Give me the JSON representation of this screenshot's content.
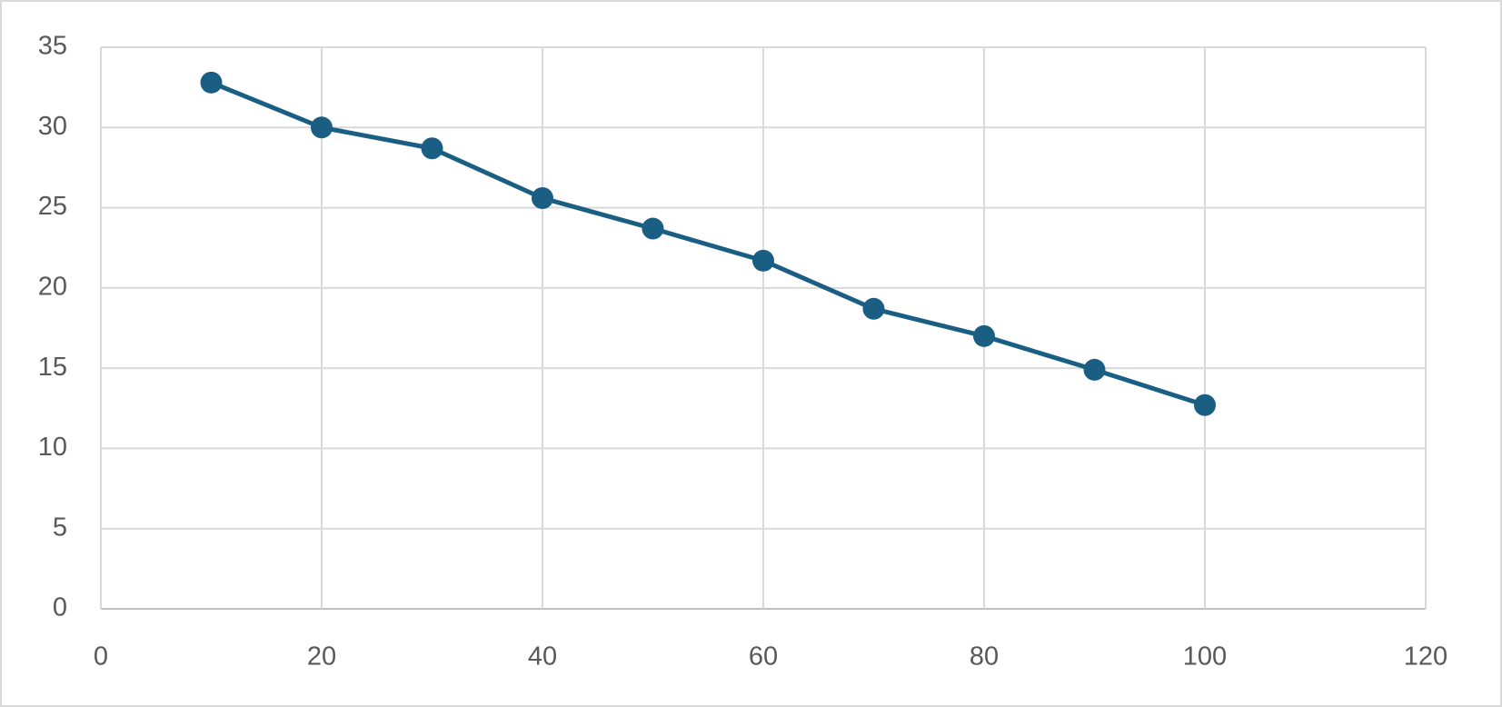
{
  "chart_data": {
    "type": "line",
    "x": [
      10,
      20,
      30,
      40,
      50,
      60,
      70,
      80,
      90,
      100
    ],
    "values": [
      32.8,
      30,
      28.7,
      25.6,
      23.7,
      21.7,
      18.7,
      17,
      14.9,
      12.7
    ],
    "color": "#1a5e83",
    "xlim": [
      0,
      120
    ],
    "xticks": [
      0,
      20,
      40,
      60,
      80,
      100,
      120
    ],
    "ylim": [
      0,
      35
    ],
    "yticks": [
      0,
      5,
      10,
      15,
      20,
      25,
      30,
      35
    ],
    "grid": true,
    "markers": true
  }
}
